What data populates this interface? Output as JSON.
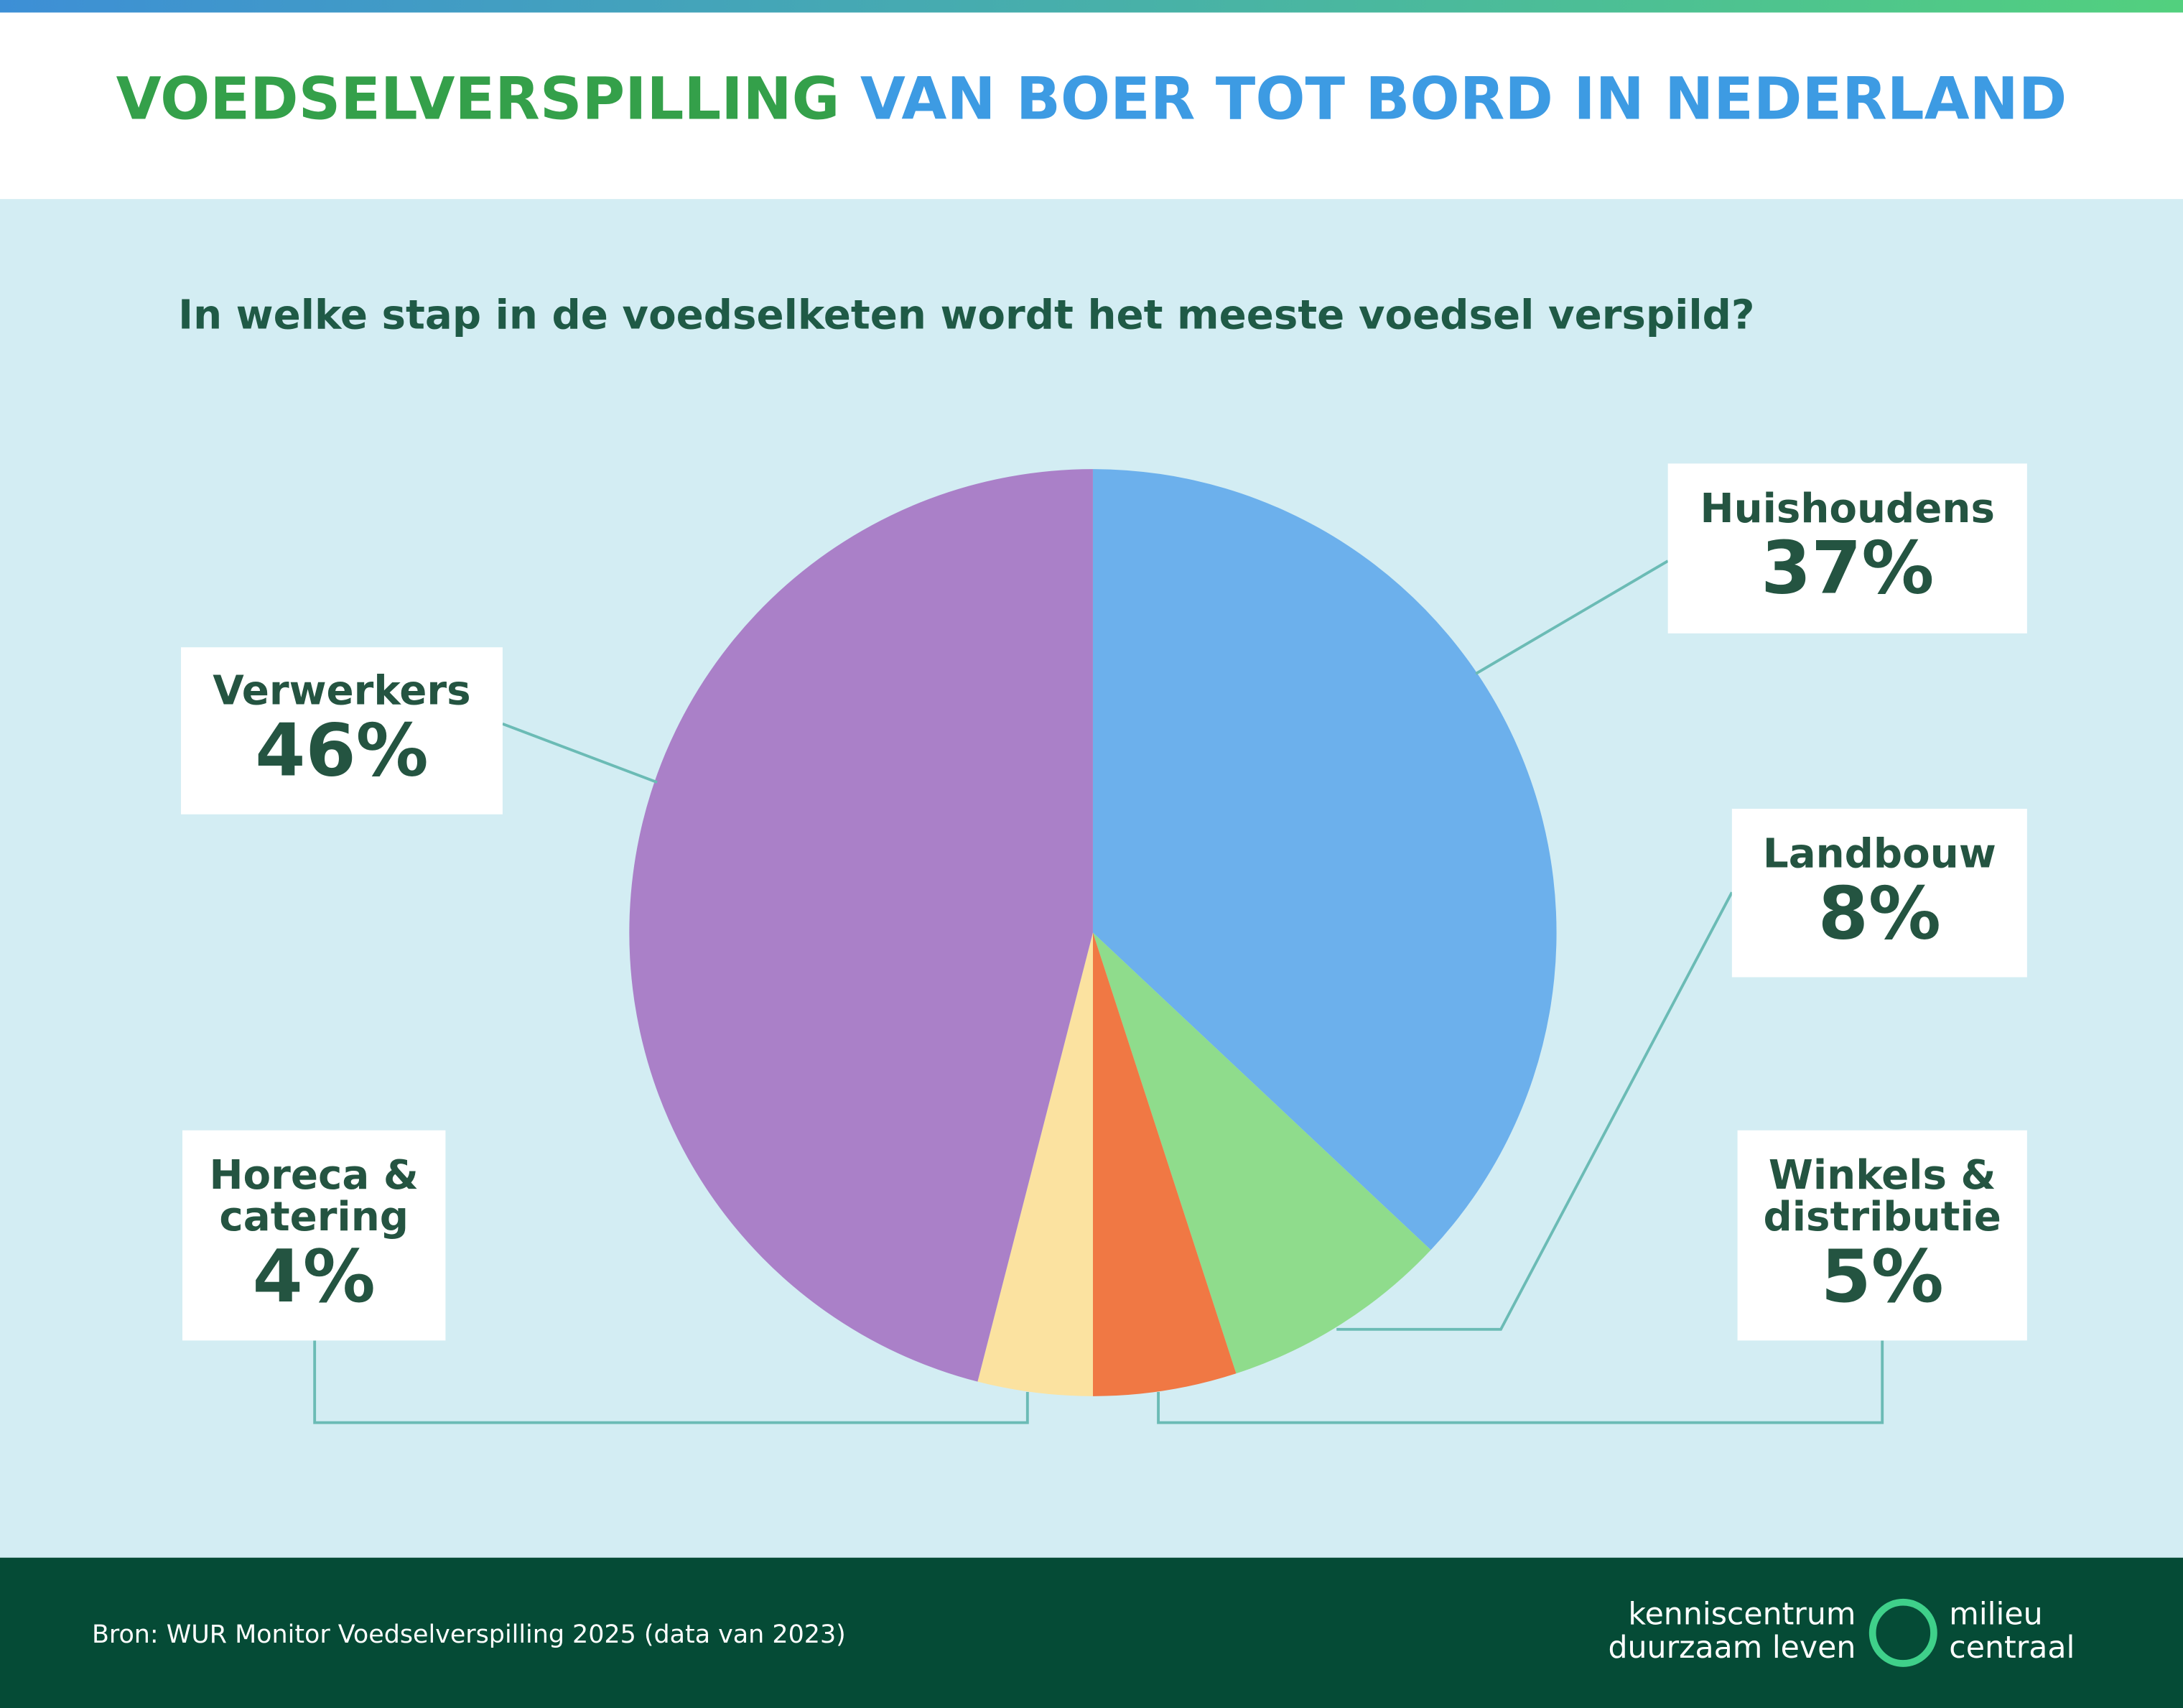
{
  "chart_data": {
    "type": "pie",
    "title": [
      "VOEDSELVERSPILLING",
      "VAN BOER TOT BORD IN NEDERLAND"
    ],
    "subtitle": "In welke stap in de voedselketen wordt het meeste voedsel verspild?",
    "categories": [
      "Huishoudens",
      "Landbouw",
      "Winkels & distributie",
      "Horeca & catering",
      "Verwerkers"
    ],
    "values": [
      37,
      8,
      5,
      4,
      46
    ],
    "value_labels": [
      "37%",
      "8%",
      "5%",
      "4%",
      "46%"
    ],
    "colors": [
      "#6cb0ec",
      "#8fdc8c",
      "#f07844",
      "#fbe2a0",
      "#aa80c8"
    ]
  },
  "footer": {
    "source": "Bron: WUR Monitor Voedselverspilling 2025 (data van 2023)",
    "logo": [
      "kenniscentrum",
      "duurzaam leven",
      "milieu",
      "centraal"
    ]
  }
}
